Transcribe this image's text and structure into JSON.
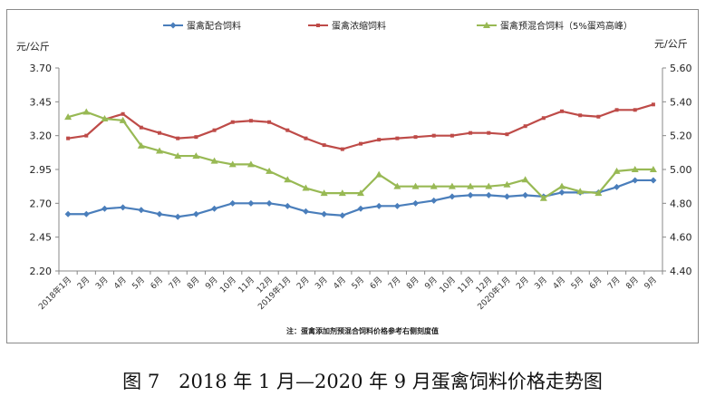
{
  "chart_data": {
    "type": "line",
    "caption": "图 7　2018 年 1 月—2020 年 9 月蛋禽饲料价格走势图",
    "note": "注：蛋禽添加剂预混合饲料价格参考右侧刻度值",
    "ylabel_left": "元/公斤",
    "ylabel_right": "元/公斤",
    "ylim_left": [
      2.2,
      3.7
    ],
    "ylim_right": [
      4.4,
      5.6
    ],
    "yticks_left": [
      "2.20",
      "2.45",
      "2.70",
      "2.95",
      "3.20",
      "3.45",
      "3.70"
    ],
    "yticks_right": [
      "4.40",
      "4.60",
      "4.80",
      "5.00",
      "5.20",
      "5.40",
      "5.60"
    ],
    "grid": false,
    "legend_position": "top",
    "x": [
      "2018年1月",
      "2月",
      "3月",
      "4月",
      "5月",
      "6月",
      "7月",
      "8月",
      "9月",
      "10月",
      "11月",
      "12月",
      "2019年1月",
      "2月",
      "3月",
      "4月",
      "5月",
      "6月",
      "7月",
      "8月",
      "9月",
      "10月",
      "11月",
      "12月",
      "2020年1月",
      "2月",
      "3月",
      "4月",
      "5月",
      "6月",
      "7月",
      "8月",
      "9月"
    ],
    "series": [
      {
        "name": "蛋禽配合饲料",
        "axis": "left",
        "color": "#4a7ebb",
        "marker": "diamond",
        "values": [
          2.62,
          2.62,
          2.66,
          2.67,
          2.65,
          2.62,
          2.6,
          2.62,
          2.66,
          2.7,
          2.7,
          2.7,
          2.68,
          2.64,
          2.62,
          2.61,
          2.66,
          2.68,
          2.68,
          2.7,
          2.72,
          2.75,
          2.76,
          2.76,
          2.75,
          2.76,
          2.75,
          2.78,
          2.78,
          2.78,
          2.82,
          2.87,
          2.87
        ]
      },
      {
        "name": "蛋禽浓缩饲料",
        "axis": "left",
        "color": "#be4b48",
        "marker": "square",
        "values": [
          3.18,
          3.2,
          3.32,
          3.36,
          3.26,
          3.22,
          3.18,
          3.19,
          3.24,
          3.3,
          3.31,
          3.3,
          3.24,
          3.18,
          3.13,
          3.1,
          3.14,
          3.17,
          3.18,
          3.19,
          3.2,
          3.2,
          3.22,
          3.22,
          3.21,
          3.27,
          3.33,
          3.38,
          3.35,
          3.34,
          3.39,
          3.39,
          3.43
        ]
      },
      {
        "name": "蛋禽预混合饲料（5%蛋鸡高峰）",
        "axis": "right",
        "color": "#98b954",
        "marker": "triangle",
        "values": [
          5.31,
          5.34,
          5.3,
          5.29,
          5.14,
          5.11,
          5.08,
          5.08,
          5.05,
          5.03,
          5.03,
          4.99,
          4.94,
          4.89,
          4.86,
          4.86,
          4.86,
          4.97,
          4.9,
          4.9,
          4.9,
          4.9,
          4.9,
          4.9,
          4.91,
          4.94,
          4.83,
          4.9,
          4.87,
          4.86,
          4.99,
          5.0,
          5.0
        ]
      }
    ]
  }
}
